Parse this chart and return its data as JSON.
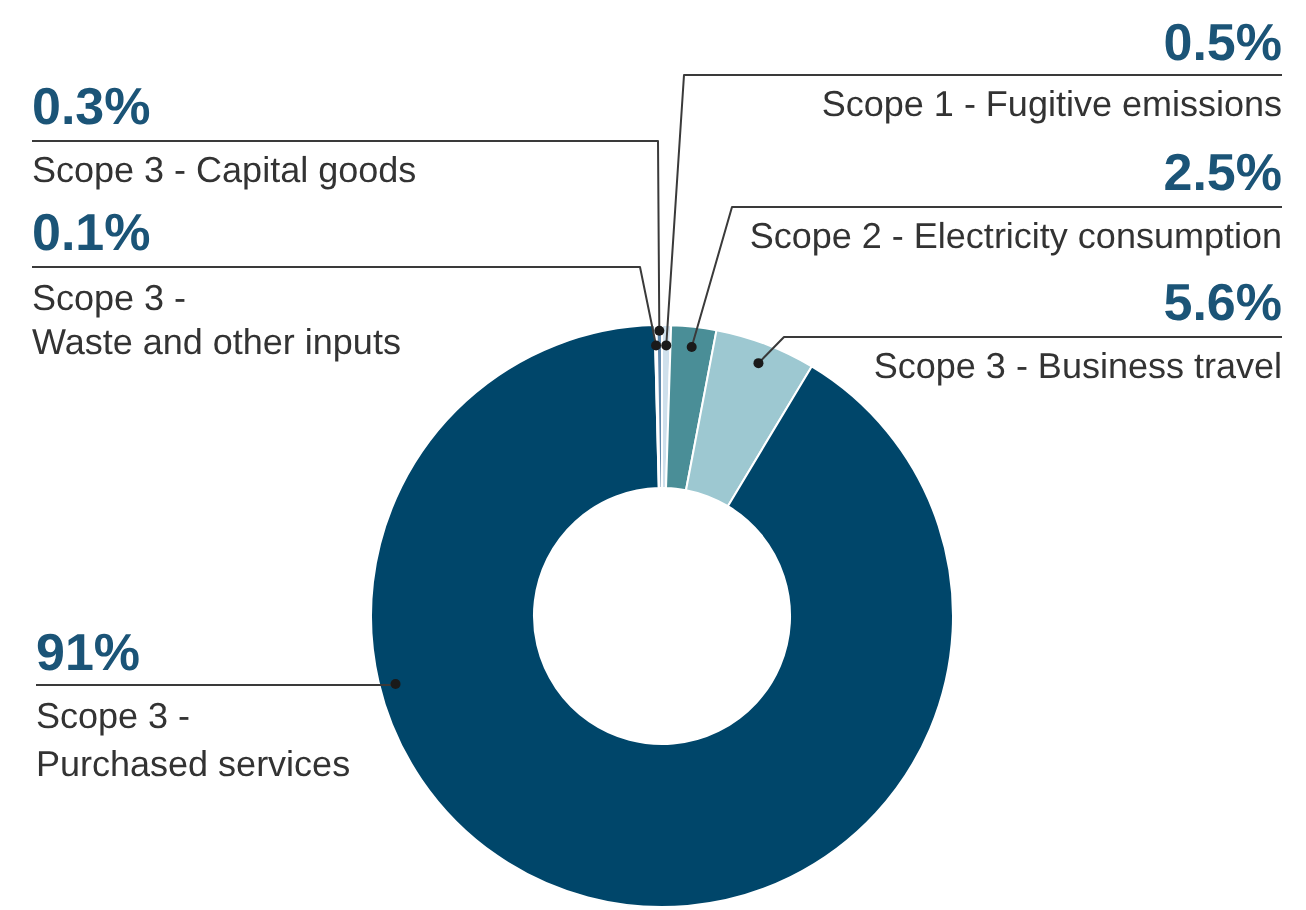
{
  "chart_data": {
    "type": "donut",
    "categories": [
      "Scope 1 - Fugitive emissions",
      "Scope 2 - Electricity consumption",
      "Scope 3 - Business travel",
      "Scope 3 - Purchased services",
      "Scope 3 - Waste and other inputs",
      "Scope 3 - Capital goods"
    ],
    "values": [
      0.5,
      2.5,
      5.6,
      91,
      0.1,
      0.3
    ],
    "colors": [
      "#cfe0ec",
      "#4a8e97",
      "#9dc8d1",
      "#00466a",
      "#2d6d8f",
      "#5f88ab"
    ],
    "value_labels": [
      "0.5%",
      "2.5%",
      "5.6%",
      "91%",
      "0.1%",
      "0.3%"
    ]
  }
}
